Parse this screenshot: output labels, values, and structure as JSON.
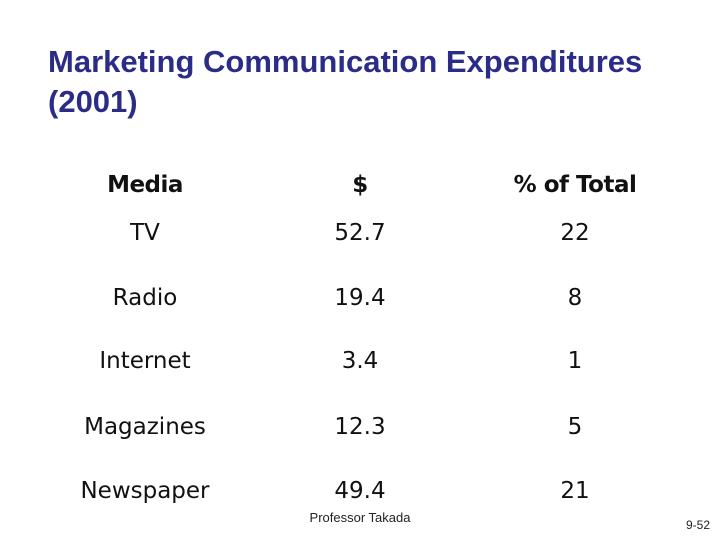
{
  "slide": {
    "title_line1": "Marketing Communication Expenditures",
    "title_line2": "(2001)",
    "footer": "Professor Takada",
    "page_number": "9-52"
  },
  "table": {
    "headers": [
      "Media",
      "$",
      "% of Total"
    ],
    "rows": [
      [
        "TV",
        "52.7",
        "22"
      ],
      [
        "Radio",
        "19.4",
        "8"
      ],
      [
        "Internet",
        "3.4",
        "1"
      ],
      [
        "Magazines",
        "12.3",
        "5"
      ],
      [
        "Newspaper",
        "49.4",
        "21"
      ]
    ]
  },
  "colors": {
    "title": "#2b2b88",
    "text": "#111111",
    "background": "#ffffff"
  }
}
